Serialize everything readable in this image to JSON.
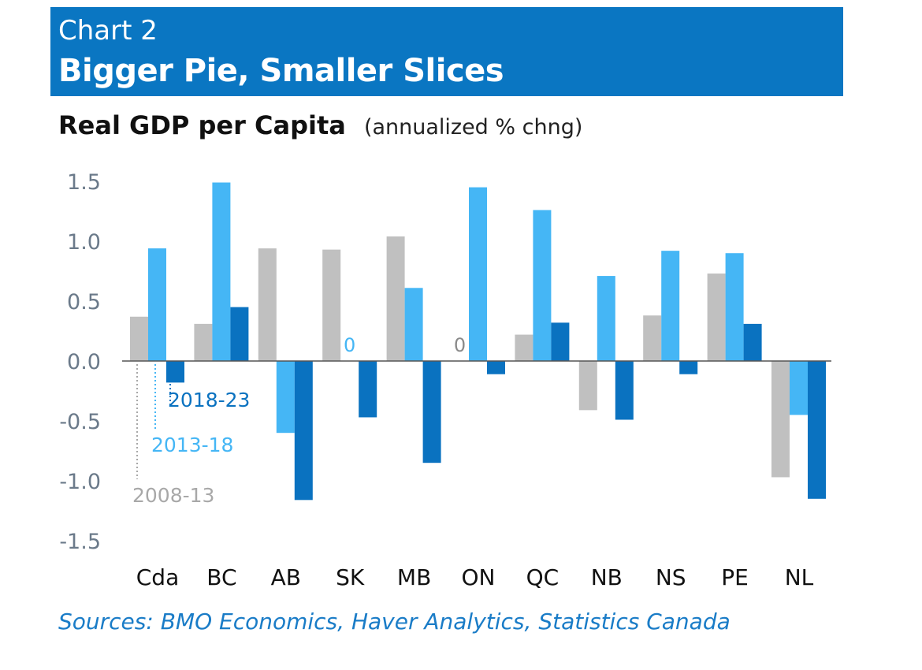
{
  "header": {
    "kicker": "Chart 2",
    "headline": "Bigger Pie, Smaller Slices"
  },
  "subtitle": {
    "main": "Real GDP per Capita",
    "unit": "(annualized % chng)"
  },
  "source": "Sources: BMO Economics, Haver Analytics, Statistics Canada",
  "chart_data": {
    "type": "bar",
    "title": "Real GDP per Capita",
    "ylabel": "annualized % chng",
    "xlabel": "",
    "ylim": [
      -1.5,
      1.5
    ],
    "yticks": [
      1.5,
      1.0,
      0.5,
      0.0,
      -0.5,
      -1.0,
      -1.5
    ],
    "ytick_labels": [
      "1.5",
      "1.0",
      "0.5",
      "0.0",
      "-0.5",
      "-1.0",
      "-1.5"
    ],
    "grid": false,
    "categories": [
      "Cda",
      "BC",
      "AB",
      "SK",
      "MB",
      "ON",
      "QC",
      "NB",
      "NS",
      "PE",
      "NL"
    ],
    "series": [
      {
        "name": "2008-13",
        "color": "#c0c0c0",
        "values": [
          0.37,
          0.31,
          0.94,
          0.93,
          1.04,
          0.0,
          0.22,
          -0.41,
          0.38,
          0.73,
          -0.97
        ]
      },
      {
        "name": "2013-18",
        "color": "#45b6f5",
        "values": [
          0.94,
          1.49,
          -0.6,
          0.0,
          0.61,
          1.45,
          1.26,
          0.71,
          0.92,
          0.9,
          -0.45
        ]
      },
      {
        "name": "2018-23",
        "color": "#0a72c0",
        "values": [
          -0.18,
          0.45,
          -1.16,
          -0.47,
          -0.85,
          -0.11,
          0.32,
          -0.49,
          -0.11,
          0.31,
          -1.15
        ]
      }
    ],
    "annotations": [
      {
        "text": "0",
        "category": "SK",
        "series": "2013-18"
      },
      {
        "text": "0",
        "category": "ON",
        "series": "2008-13"
      }
    ],
    "legend_labels": [
      "2018-23",
      "2013-18",
      "2008-13"
    ],
    "legend_placement": "inline-bottom-left"
  }
}
